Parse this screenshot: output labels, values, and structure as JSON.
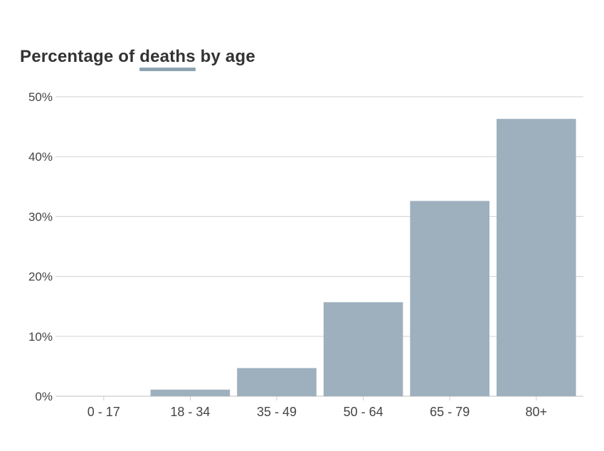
{
  "title": {
    "before": "Percentage of",
    "highlight": "deaths",
    "after": "by age"
  },
  "colors": {
    "bar": "#9eb0be",
    "accent": "#8ea3b1",
    "grid": "#d9d9d9",
    "axis": "#cccccc"
  },
  "chart_data": {
    "type": "bar",
    "title": "Percentage of deaths by age",
    "categories": [
      "0-17",
      "18-34",
      "35-49",
      "50-64",
      "65-79",
      "80+"
    ],
    "series": [
      {
        "values": [
          0.0,
          1.1,
          4.7,
          15.7,
          32.6,
          46.3
        ]
      }
    ],
    "ylim": [
      0,
      50
    ],
    "yticks": [
      0,
      10,
      20,
      30,
      40,
      50
    ],
    "ytick_labels": [
      "0%",
      "10%",
      "20%",
      "30%",
      "40%",
      "50%"
    ],
    "xtick_labels": [
      "0 - 17",
      "18 - 34",
      "35 - 49",
      "50 - 64",
      "65 - 79",
      "80+"
    ],
    "grid": true,
    "legend": "none"
  }
}
